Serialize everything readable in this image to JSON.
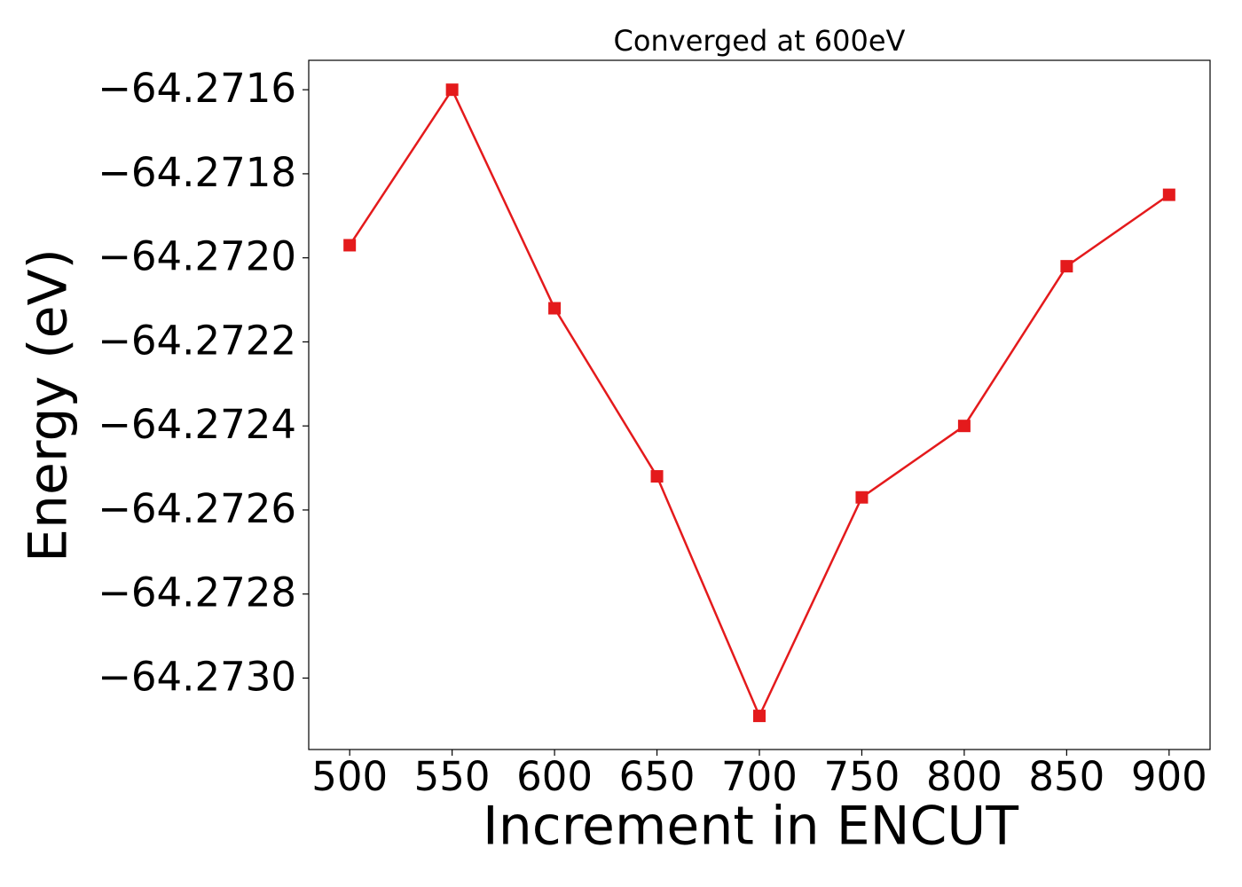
{
  "chart_data": {
    "type": "line",
    "title": "Converged at 600eV",
    "x_label": "Increment in ENCUT",
    "y_label": "Energy (eV)",
    "x": [
      500,
      550,
      600,
      650,
      700,
      750,
      800,
      850,
      900
    ],
    "series": [
      {
        "color": "#e41a1c",
        "marker": "square",
        "values": [
          -64.27197,
          -64.2716,
          -64.27212,
          -64.27252,
          -64.27309,
          -64.27257,
          -64.2724,
          -64.27202,
          -64.27185
        ]
      }
    ],
    "xlim": [
      480,
      920
    ],
    "xticks": [
      500,
      550,
      600,
      650,
      700,
      750,
      800,
      850,
      900
    ],
    "ylim": [
      -64.27317,
      -64.27153
    ],
    "yticks": [
      {
        "value": -64.2716,
        "label": "−64.2716"
      },
      {
        "value": -64.2718,
        "label": "−64.2718"
      },
      {
        "value": -64.272,
        "label": "−64.2720"
      },
      {
        "value": -64.2722,
        "label": "−64.2722"
      },
      {
        "value": -64.2724,
        "label": "−64.2724"
      },
      {
        "value": -64.2726,
        "label": "−64.2726"
      },
      {
        "value": -64.2728,
        "label": "−64.2728"
      },
      {
        "value": -64.273,
        "label": "−64.2730"
      }
    ],
    "grid": false
  }
}
